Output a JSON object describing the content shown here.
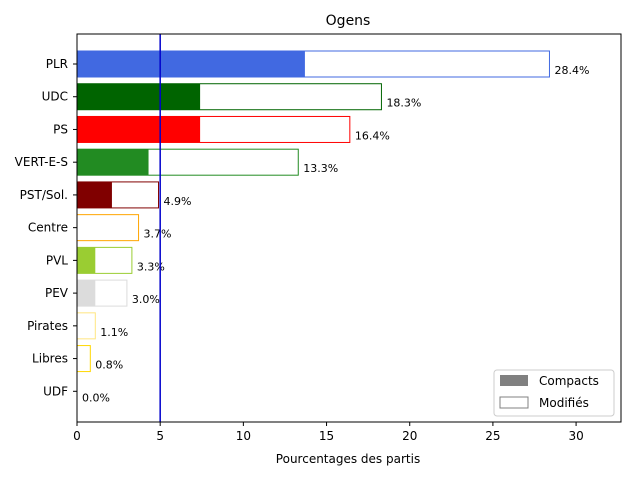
{
  "chart_data": {
    "type": "bar",
    "orientation": "horizontal",
    "title": "Ogens",
    "xlabel": "Pourcentages des partis",
    "ylabel": "",
    "xlim": [
      0,
      32.7
    ],
    "xticks": [
      0,
      5,
      10,
      15,
      20,
      25,
      30
    ],
    "reference_line_x": 5,
    "reference_line_color": "#0000cc",
    "grid": false,
    "legend": {
      "position": "bottom-right",
      "entries": [
        {
          "name": "Compacts",
          "style": "filled",
          "color": "#808080"
        },
        {
          "name": "Modifiés",
          "style": "outline",
          "color": "#808080"
        }
      ]
    },
    "categories": [
      "PLR",
      "UDC",
      "PS",
      "VERT-E-S",
      "PST/Sol.",
      "Centre",
      "PVL",
      "PEV",
      "Pirates",
      "Libres",
      "UDF"
    ],
    "series": [
      {
        "name": "Compacts",
        "values": [
          13.7,
          7.4,
          7.4,
          4.3,
          2.1,
          0.0,
          1.1,
          1.1,
          0.0,
          0.0,
          0.0
        ]
      },
      {
        "name": "Modifiés",
        "values": [
          28.4,
          18.3,
          16.4,
          13.3,
          4.9,
          3.7,
          3.3,
          3.0,
          1.1,
          0.8,
          0.0
        ]
      }
    ],
    "data_labels": [
      "28.4%",
      "18.3%",
      "16.4%",
      "13.3%",
      "4.9%",
      "3.7%",
      "3.3%",
      "3.0%",
      "1.1%",
      "0.8%",
      "0.0%"
    ],
    "colors": [
      "#4169e1",
      "#006400",
      "#ff0000",
      "#228b22",
      "#800000",
      "#ffa500",
      "#9acd32",
      "#dcdcdc",
      "#ffe680",
      "#ffd700",
      "#bbbbbb"
    ]
  }
}
